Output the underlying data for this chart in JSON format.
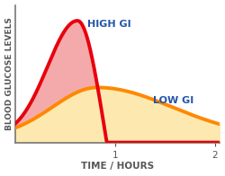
{
  "xlabel": "TIME / HOURS",
  "ylabel": "BLOOD GLUCOSE LEVELS",
  "xlim": [
    0,
    2.05
  ],
  "ylim": [
    0,
    1.05
  ],
  "xticks": [
    1,
    2
  ],
  "background_color": "#ffffff",
  "high_gi_color": "#e8000d",
  "high_gi_fill_color": "#f4aaaa",
  "low_gi_color": "#ff8800",
  "low_gi_fill_color": "#fde9b0",
  "high_gi_label": "HIGH GI",
  "low_gi_label": "LOW GI",
  "label_color": "#2255aa",
  "axis_color": "#777777",
  "tick_label_color": "#555555",
  "xlabel_fontsize": 7.5,
  "ylabel_fontsize": 6.5,
  "label_fontsize": 8,
  "linewidth": 2.8
}
